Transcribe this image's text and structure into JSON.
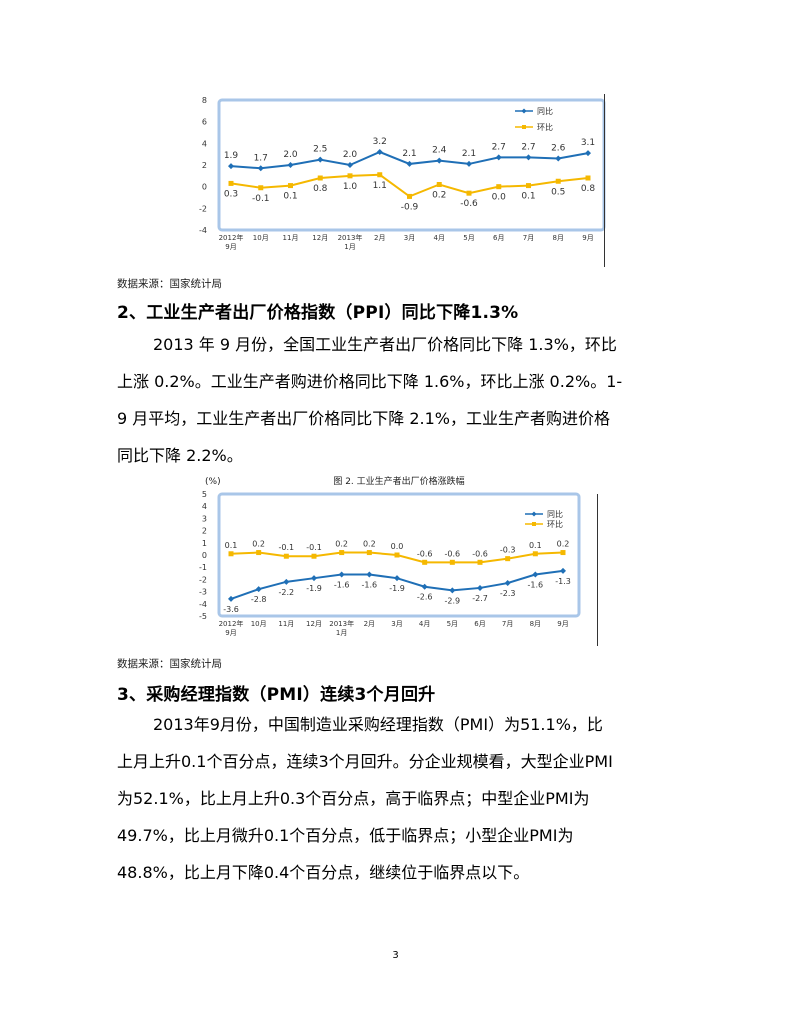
{
  "chart_data": [
    {
      "type": "line",
      "title": "",
      "ylabel": "",
      "ylim": [
        -4,
        8
      ],
      "yticks": [
        -4,
        -2,
        0,
        2,
        4,
        6,
        8
      ],
      "grid": false,
      "legend": "top-right",
      "categories": [
        "2012年\n9月",
        "10月",
        "11月",
        "12月",
        "2013年\n1月",
        "2月",
        "3月",
        "4月",
        "5月",
        "6月",
        "7月",
        "8月",
        "9月"
      ],
      "series": [
        {
          "name": "同比",
          "color": "#1f6fb6",
          "marker": "diamond",
          "values": [
            1.9,
            1.7,
            2.0,
            2.5,
            2.0,
            3.2,
            2.1,
            2.4,
            2.1,
            2.7,
            2.7,
            2.6,
            3.1
          ],
          "labels": [
            "1.9",
            "1.7",
            "2.0",
            "2.5",
            "2.0",
            "3.2",
            "2.1",
            "2.4",
            "2.1",
            "2.7",
            "2.7",
            "2.6",
            "3.1"
          ]
        },
        {
          "name": "环比",
          "color": "#f5b800",
          "marker": "square",
          "values": [
            0.3,
            -0.1,
            0.1,
            0.8,
            1.0,
            1.1,
            -0.9,
            0.2,
            -0.6,
            0.0,
            0.1,
            0.5,
            0.8
          ],
          "labels": [
            "0.3",
            "-0.1",
            "0.1",
            "0.8",
            "1.0",
            "1.1",
            "-0.9",
            "0.2",
            "-0.6",
            "0.0",
            "0.1",
            "0.5",
            "0.8"
          ]
        }
      ]
    },
    {
      "type": "line",
      "title": "图 2.  工业生产者出厂价格涨跌幅",
      "ylabel": "(%)",
      "ylim": [
        -5,
        5
      ],
      "yticks": [
        -5,
        -4,
        -3,
        -2,
        -1,
        0,
        1,
        2,
        3,
        4,
        5
      ],
      "grid": false,
      "legend": "top-right",
      "categories": [
        "2012年\n9月",
        "10月",
        "11月",
        "12月",
        "2013年\n1月",
        "2月",
        "3月",
        "4月",
        "5月",
        "6月",
        "7月",
        "8月",
        "9月"
      ],
      "series": [
        {
          "name": "同比",
          "color": "#1f6fb6",
          "marker": "diamond",
          "values": [
            -3.6,
            -2.8,
            -2.2,
            -1.9,
            -1.6,
            -1.6,
            -1.9,
            -2.6,
            -2.9,
            -2.7,
            -2.3,
            -1.6,
            -1.3
          ],
          "labels": [
            "-3.6",
            "-2.8",
            "-2.2",
            "-1.9",
            "-1.6",
            "-1.6",
            "-1.9",
            "-2.6",
            "-2.9",
            "-2.7",
            "-2.3",
            "-1.6",
            "-1.3"
          ]
        },
        {
          "name": "环比",
          "color": "#f5b800",
          "marker": "square",
          "values": [
            0.1,
            0.2,
            -0.1,
            -0.1,
            0.2,
            0.2,
            0.0,
            -0.6,
            -0.6,
            -0.6,
            -0.3,
            0.1,
            0.2
          ],
          "labels": [
            "0.1",
            "0.2",
            "-0.1",
            "-0.1",
            "0.2",
            "0.2",
            "0.0",
            "-0.6",
            "-0.6",
            "-0.6",
            "-0.3",
            "0.1",
            "0.2"
          ]
        }
      ]
    }
  ],
  "page": {
    "source1": "数据来源：国家统计局",
    "heading2": "2、工业生产者出厂价格指数（PPI）同比下降1.3%",
    "para2": [
      "2013 年 9 月份，全国工业生产者出厂价格同比下降 1.3%，环比",
      "上涨 0.2%。工业生产者购进价格同比下降 1.6%，环比上涨 0.2%。1-",
      "9 月平均，工业生产者出厂价格同比下降 2.1%，工业生产者购进价格",
      "同比下降 2.2%。"
    ],
    "source2": "数据来源：国家统计局",
    "heading3": "3、采购经理指数（PMI）连续3个月回升",
    "para3": [
      "2013年9月份，中国制造业采购经理指数（PMI）为51.1%，比",
      "上月上升0.1个百分点，连续3个月回升。分企业规模看，大型企业PMI",
      "为52.1%，比上月上升0.3个百分点，高于临界点；中型企业PMI为",
      "49.7%，比上月微升0.1个百分点，低于临界点；小型企业PMI为",
      "48.8%，比上月下降0.4个百分点，继续位于临界点以下。"
    ],
    "page_number": "3"
  }
}
